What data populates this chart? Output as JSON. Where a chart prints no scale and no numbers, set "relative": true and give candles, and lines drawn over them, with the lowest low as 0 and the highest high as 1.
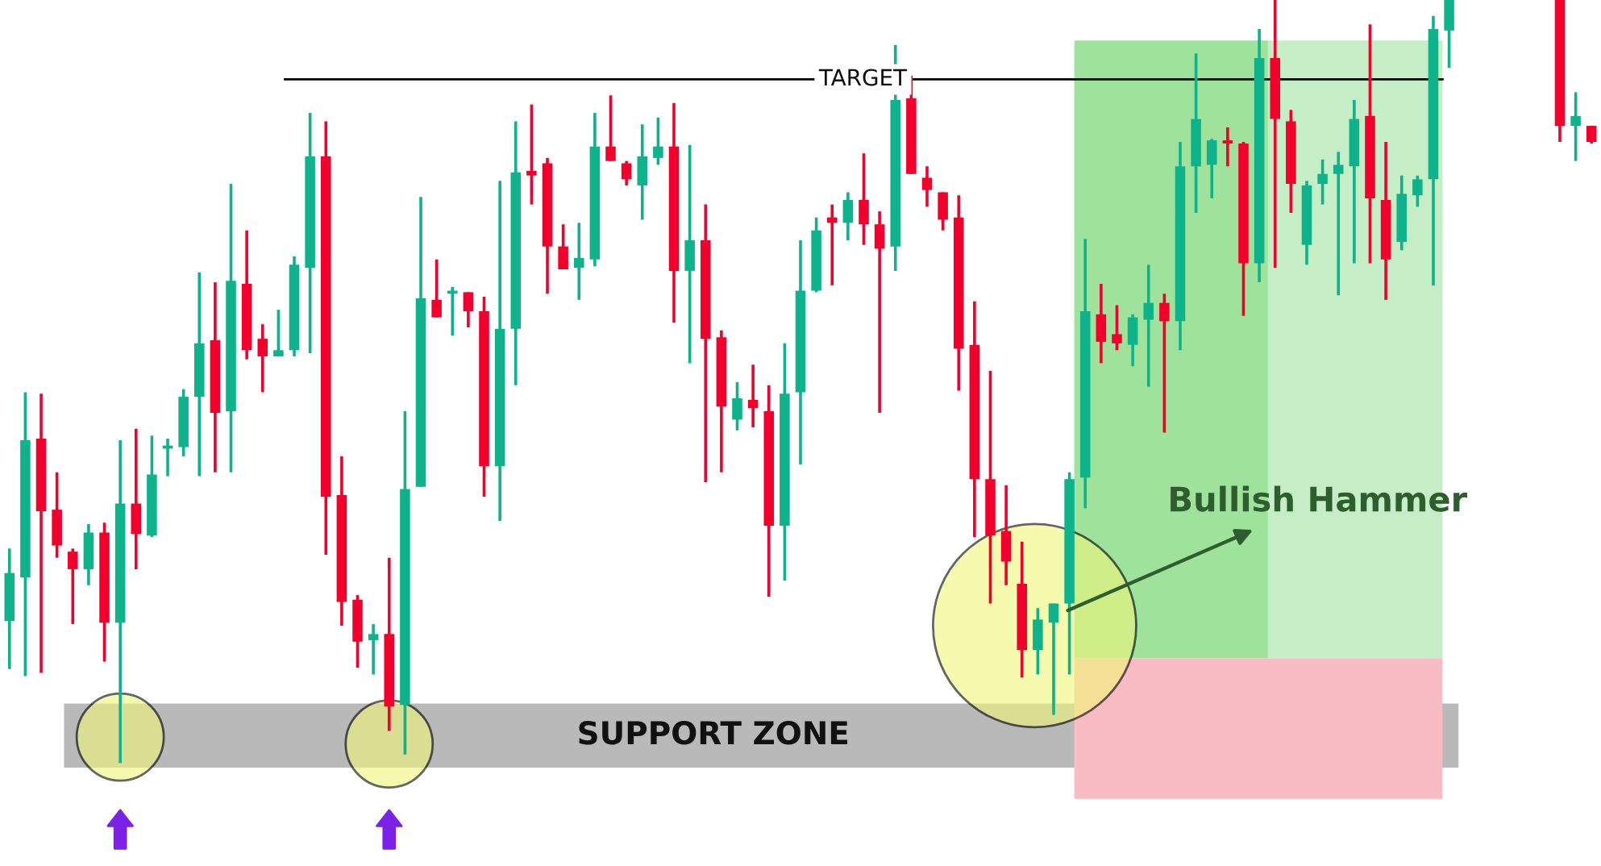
{
  "chart_data": {
    "type": "candlestick",
    "relative": true,
    "categories": [
      null,
      null,
      null,
      null,
      null,
      null,
      null,
      null,
      null,
      null,
      null,
      null,
      null,
      null,
      null,
      null,
      null,
      null,
      null,
      null,
      null,
      null,
      null,
      null,
      null,
      null,
      null,
      null,
      null,
      null,
      null,
      null,
      null,
      null,
      null,
      null,
      null,
      null,
      null,
      null,
      null,
      null,
      null,
      null,
      null,
      null,
      null,
      null,
      null,
      null,
      null,
      null,
      null,
      null,
      null,
      null,
      null,
      null,
      null,
      null,
      null,
      null,
      null,
      null,
      null,
      null,
      null,
      null,
      null,
      null,
      null,
      null,
      null,
      null,
      null,
      null,
      null,
      null,
      null,
      null,
      null,
      null,
      null,
      null,
      null,
      null,
      null,
      null,
      null,
      null,
      null,
      null,
      null,
      null,
      null,
      null,
      null,
      null,
      null,
      null,
      null
    ],
    "ohlc": [
      [
        0.186,
        0.281,
        0.123,
        0.249
      ],
      [
        0.243,
        0.486,
        0.114,
        0.423
      ],
      [
        0.425,
        0.484,
        0.118,
        0.33
      ],
      [
        0.332,
        0.381,
        0.269,
        0.285
      ],
      [
        0.277,
        0.281,
        0.182,
        0.254
      ],
      [
        0.254,
        0.313,
        0.233,
        0.302
      ],
      [
        0.302,
        0.315,
        0.133,
        0.184
      ],
      [
        0.184,
        0.423,
        0,
        0.34
      ],
      [
        0.34,
        0.438,
        0.254,
        0.3
      ],
      [
        0.298,
        0.429,
        0.296,
        0.378
      ],
      [
        0.412,
        0.425,
        0.376,
        0.414
      ],
      [
        0.414,
        0.49,
        0.402,
        0.48
      ],
      [
        0.48,
        0.643,
        0.376,
        0.55
      ],
      [
        0.554,
        0.63,
        0.381,
        0.459
      ],
      [
        0.461,
        0.759,
        0.381,
        0.632
      ],
      [
        0.628,
        0.698,
        0.529,
        0.541
      ],
      [
        0.556,
        0.575,
        0.486,
        0.533
      ],
      [
        0.533,
        0.594,
        0.533,
        0.541
      ],
      [
        0.541,
        0.664,
        0.533,
        0.653
      ],
      [
        0.649,
        0.852,
        0.537,
        0.795
      ],
      [
        0.795,
        0.841,
        0.273,
        0.349
      ],
      [
        0.351,
        0.402,
        0.18,
        0.211
      ],
      [
        0.214,
        0.22,
        0.125,
        0.159
      ],
      [
        0.161,
        0.182,
        0.116,
        0.169
      ],
      [
        0.169,
        0.269,
        0.042,
        0.074
      ],
      [
        0.076,
        0.461,
        0.011,
        0.359
      ],
      [
        0.362,
        0.742,
        0.362,
        0.609
      ],
      [
        0.607,
        0.66,
        0.584,
        0.584
      ],
      [
        0.615,
        0.624,
        0.56,
        0.616
      ],
      [
        0.617,
        0.617,
        0.571,
        0.592
      ],
      [
        0.592,
        0.611,
        0.349,
        0.389
      ],
      [
        0.389,
        0.763,
        0.317,
        0.569
      ],
      [
        0.569,
        0.841,
        0.495,
        0.774
      ],
      [
        0.776,
        0.863,
        0.732,
        0.77
      ],
      [
        0.786,
        0.793,
        0.615,
        0.677
      ],
      [
        0.677,
        0.706,
        0.647,
        0.647
      ],
      [
        0.649,
        0.708,
        0.607,
        0.662
      ],
      [
        0.66,
        0.852,
        0.651,
        0.808
      ],
      [
        0.808,
        0.875,
        0.789,
        0.789
      ],
      [
        0.786,
        0.789,
        0.757,
        0.765
      ],
      [
        0.757,
        0.837,
        0.712,
        0.795
      ],
      [
        0.793,
        0.846,
        0.784,
        0.808
      ],
      [
        0.808,
        0.865,
        0.577,
        0.645
      ],
      [
        0.645,
        0.81,
        0.524,
        0.685
      ],
      [
        0.685,
        0.732,
        0.368,
        0.556
      ],
      [
        0.558,
        0.567,
        0.381,
        0.467
      ],
      [
        0.45,
        0.499,
        0.436,
        0.478
      ],
      [
        0.476,
        0.522,
        0.44,
        0.465
      ],
      [
        0.461,
        0.495,
        0.218,
        0.311
      ],
      [
        0.311,
        0.55,
        0.239,
        0.484
      ],
      [
        0.486,
        0.685,
        0.391,
        0.619
      ],
      [
        0.619,
        0.715,
        0.617,
        0.698
      ],
      [
        0.715,
        0.732,
        0.626,
        0.708
      ],
      [
        0.708,
        0.748,
        0.685,
        0.738
      ],
      [
        0.738,
        0.799,
        0.679,
        0.706
      ],
      [
        0.706,
        0.723,
        0.459,
        0.674
      ],
      [
        0.677,
        0.941,
        0.645,
        0.869
      ],
      [
        0.871,
        0.901,
        0.772,
        0.772
      ],
      [
        0.767,
        0.782,
        0.729,
        0.751
      ],
      [
        0.748,
        0.748,
        0.698,
        0.712
      ],
      [
        0.715,
        0.744,
        0.488,
        0.543
      ],
      [
        0.548,
        0.605,
        0.296,
        0.372
      ],
      [
        0.372,
        0.514,
        0.209,
        0.298
      ],
      [
        0.304,
        0.364,
        0.233,
        0.264
      ],
      [
        0.235,
        0.29,
        0.112,
        0.148
      ],
      [
        0.148,
        0.203,
        0.116,
        0.188
      ],
      [
        0.184,
        0.209,
        0.063,
        0.209
      ],
      [
        0.209,
        0.381,
        0.116,
        0.372
      ],
      [
        0.374,
        0.687,
        0.334,
        0.592
      ],
      [
        0.588,
        0.628,
        0.524,
        0.552
      ],
      [
        0.562,
        0.6,
        0.541,
        0.55
      ],
      [
        0.548,
        0.588,
        0.52,
        0.584
      ],
      [
        0.581,
        0.653,
        0.493,
        0.603
      ],
      [
        0.603,
        0.615,
        0.433,
        0.579
      ],
      [
        0.579,
        0.814,
        0.541,
        0.782
      ],
      [
        0.782,
        0.93,
        0.721,
        0.844
      ],
      [
        0.784,
        0.818,
        0.74,
        0.816
      ],
      [
        0.816,
        0.833,
        0.782,
        0.812
      ],
      [
        0.812,
        0.814,
        0.586,
        0.655
      ],
      [
        0.655,
        0.962,
        0.63,
        0.924
      ],
      [
        0.924,
        1,
        0.649,
        0.844
      ],
      [
        0.841,
        0.856,
        0.721,
        0.759
      ],
      [
        0.679,
        0.763,
        0.653,
        0.757
      ],
      [
        0.759,
        0.791,
        0.732,
        0.772
      ],
      [
        0.772,
        0.801,
        0.613,
        0.784
      ],
      [
        0.782,
        0.869,
        0.655,
        0.844
      ],
      [
        0.848,
        0.968,
        0.655,
        0.74
      ],
      [
        0.738,
        0.814,
        0.607,
        0.66
      ],
      [
        0.683,
        0.77,
        0.672,
        0.746
      ],
      [
        0.744,
        0.77,
        0.729,
        0.765
      ],
      [
        0.765,
        0.979,
        0.626,
        0.962
      ],
      [
        0.96,
        1,
        0.911,
        1
      ],
      null,
      null,
      null,
      null,
      null,
      null,
      [
        1,
        1,
        0.814,
        0.835
      ],
      [
        0.835,
        0.879,
        0.789,
        0.848
      ],
      [
        0.835,
        0.835,
        0.812,
        0.814
      ]
    ],
    "ref_lines": [
      {
        "axis": "y",
        "value": 0.896,
        "label": "TARGET",
        "color": "#000000"
      }
    ],
    "bands": [
      {
        "axis": "y",
        "from": -0.006,
        "to": 0.078,
        "label": "SUPPORT ZONE",
        "color": "#b9b9b9"
      },
      {
        "axis": "y",
        "from": 0.137,
        "to": 0.947,
        "color": "#9ee29c"
      },
      {
        "axis": "y",
        "from": 0.137,
        "to": 0.947,
        "color": "#c6eec6"
      },
      {
        "axis": "y",
        "from": -0.047,
        "to": 0.137,
        "color": "#f9bcc4"
      }
    ],
    "annotations": [
      "Bullish Hammer"
    ]
  }
}
